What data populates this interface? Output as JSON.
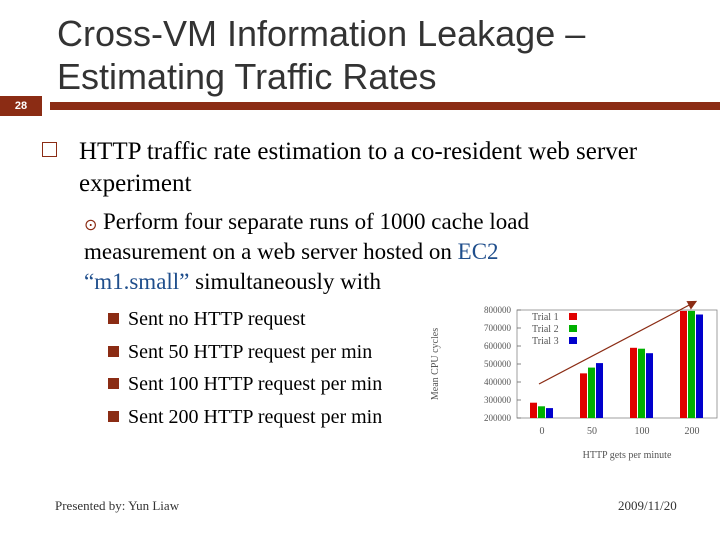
{
  "slide_number": "28",
  "title": {
    "line1": "Cross-VM Information Leakage –",
    "line2": "Estimating Traffic Rates"
  },
  "bullet1": "HTTP traffic rate estimation to a co-resident web server experiment",
  "bullet2": {
    "before": "Perform four separate runs of 1000 cache load measurement on a web server hosted on ",
    "highlight1": "EC2",
    "middle": " ",
    "highlight2": "“m1.small”",
    "after": " simultaneously with"
  },
  "sub_bullets": [
    "Sent no HTTP request",
    "Sent 50 HTTP request per min",
    "Sent 100 HTTP request per min",
    "Sent 200 HTTP request per min"
  ],
  "colors": {
    "accent": "#8b2c14",
    "highlight_text": "#1f4e8c"
  },
  "chart_data": {
    "type": "bar",
    "categories": [
      "0",
      "50",
      "100",
      "200"
    ],
    "series": [
      {
        "name": "Trial 1",
        "color": "#e00000",
        "values": [
          285000,
          448000,
          590000,
          795000
        ]
      },
      {
        "name": "Trial 2",
        "color": "#00b000",
        "values": [
          265000,
          480000,
          585000,
          795000
        ]
      },
      {
        "name": "Trial 3",
        "color": "#0000cc",
        "values": [
          255000,
          505000,
          560000,
          775000
        ]
      }
    ],
    "xlabel": "HTTP gets per minute",
    "ylabel": "Mean CPU cycles",
    "ylim": [
      200000,
      800000
    ],
    "yticks": [
      "200000",
      "300000",
      "400000",
      "500000",
      "600000",
      "700000",
      "800000"
    ],
    "legend_position": "top-left",
    "annotation": "upward trend arrow"
  },
  "footer": {
    "presenter": "Presented by: Yun Liaw",
    "date": "2009/11/20"
  }
}
